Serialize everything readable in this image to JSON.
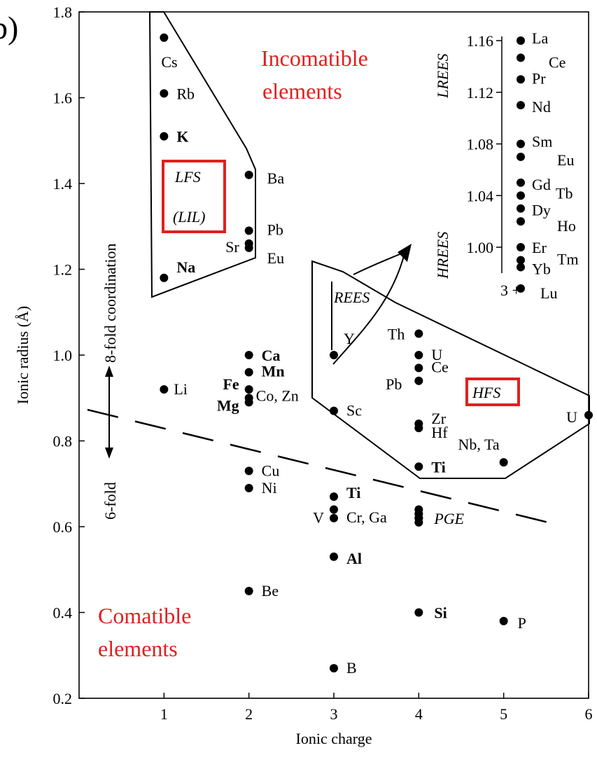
{
  "panel_label": "b)",
  "colors": {
    "highlight": "#e0201f",
    "ink": "#000000"
  },
  "chart_data": [
    {
      "type": "scatter",
      "xlabel": "Ionic charge",
      "ylabel": "Ionic radius (Å)",
      "xlim": [
        0,
        6
      ],
      "ylim": [
        0.2,
        1.8
      ],
      "x_ticks": [
        "1",
        "2",
        "3",
        "4",
        "5",
        "6"
      ],
      "y_ticks": [
        "0.2",
        "0.4",
        "0.6",
        "0.8",
        "1.0",
        "1.2",
        "1.4",
        "1.6",
        "1.8"
      ],
      "points": [
        {
          "label": "Cs",
          "x": 1,
          "y": 1.74
        },
        {
          "label": "Rb",
          "x": 1,
          "y": 1.61
        },
        {
          "label": "K",
          "x": 1,
          "y": 1.51
        },
        {
          "label": "Na",
          "x": 1,
          "y": 1.18
        },
        {
          "label": "Li",
          "x": 1,
          "y": 0.92
        },
        {
          "label": "Ba",
          "x": 2,
          "y": 1.42
        },
        {
          "label": "Pb",
          "x": 2,
          "y": 1.29
        },
        {
          "label": "Sr",
          "x": 2,
          "y": 1.26
        },
        {
          "label": "Eu",
          "x": 2,
          "y": 1.25
        },
        {
          "label": "Ca",
          "x": 2,
          "y": 1.0
        },
        {
          "label": "Mn",
          "x": 2,
          "y": 0.96
        },
        {
          "label": "Fe",
          "x": 2,
          "y": 0.92
        },
        {
          "label": "Mg",
          "x": 2,
          "y": 0.89
        },
        {
          "label": "Co, Zn",
          "x": 2,
          "y": 0.9
        },
        {
          "label": "Cu",
          "x": 2,
          "y": 0.73
        },
        {
          "label": "Ni",
          "x": 2,
          "y": 0.69
        },
        {
          "label": "Be",
          "x": 2,
          "y": 0.45
        },
        {
          "label": "Y",
          "x": 3,
          "y": 1.0
        },
        {
          "label": "Sc",
          "x": 3,
          "y": 0.87
        },
        {
          "label": "Ti",
          "x": 3,
          "y": 0.67
        },
        {
          "label": "V",
          "x": 3,
          "y": 0.64
        },
        {
          "label": "Cr, Ga",
          "x": 3,
          "y": 0.62
        },
        {
          "label": "Al",
          "x": 3,
          "y": 0.53
        },
        {
          "label": "B",
          "x": 3,
          "y": 0.27
        },
        {
          "label": "Th",
          "x": 4,
          "y": 1.05
        },
        {
          "label": "U",
          "x": 4,
          "y": 1.0
        },
        {
          "label": "Ce",
          "x": 4,
          "y": 0.97
        },
        {
          "label": "Pb",
          "x": 4,
          "y": 0.94
        },
        {
          "label": "Zr",
          "x": 4,
          "y": 0.84
        },
        {
          "label": "Hf",
          "x": 4,
          "y": 0.83
        },
        {
          "label": "Ti",
          "x": 4,
          "y": 0.74
        },
        {
          "label": "PGE",
          "x": 4,
          "y": 0.62
        },
        {
          "label": "Si",
          "x": 4,
          "y": 0.4
        },
        {
          "label": "Nb, Ta",
          "x": 5,
          "y": 0.75
        },
        {
          "label": "P",
          "x": 5,
          "y": 0.38
        },
        {
          "label": "U",
          "x": 6,
          "y": 0.86
        }
      ],
      "annotations": {
        "incompatible": [
          "Incomatible",
          "elements"
        ],
        "compatible": [
          "Comatible",
          "elements"
        ],
        "lfs": "LFS",
        "lil": "(LIL)",
        "hfs": "HFS",
        "rees": "REES",
        "coord8": "8-fold coordination",
        "coord6": "6-fold"
      }
    },
    {
      "type": "scatter",
      "title": "3 +",
      "ylim": [
        0.98,
        1.16
      ],
      "y_ticks": [
        "1.00",
        "1.04",
        "1.08",
        "1.12",
        "1.16"
      ],
      "side_labels": {
        "lrees": "LREES",
        "hrees": "HREES"
      },
      "points": [
        {
          "label": "La",
          "y": 1.16
        },
        {
          "label": "Ce",
          "y": 1.15
        },
        {
          "label": "Pr",
          "y": 1.13
        },
        {
          "label": "Nd",
          "y": 1.11
        },
        {
          "label": "Sm",
          "y": 1.08
        },
        {
          "label": "Eu",
          "y": 1.07
        },
        {
          "label": "Gd",
          "y": 1.05
        },
        {
          "label": "Tb",
          "y": 1.04
        },
        {
          "label": "Dy",
          "y": 1.03
        },
        {
          "label": "Ho",
          "y": 1.02
        },
        {
          "label": "Er",
          "y": 1.0
        },
        {
          "label": "Tm",
          "y": 0.99
        },
        {
          "label": "Yb",
          "y": 0.99
        },
        {
          "label": "Lu",
          "y": 0.98
        }
      ]
    }
  ]
}
